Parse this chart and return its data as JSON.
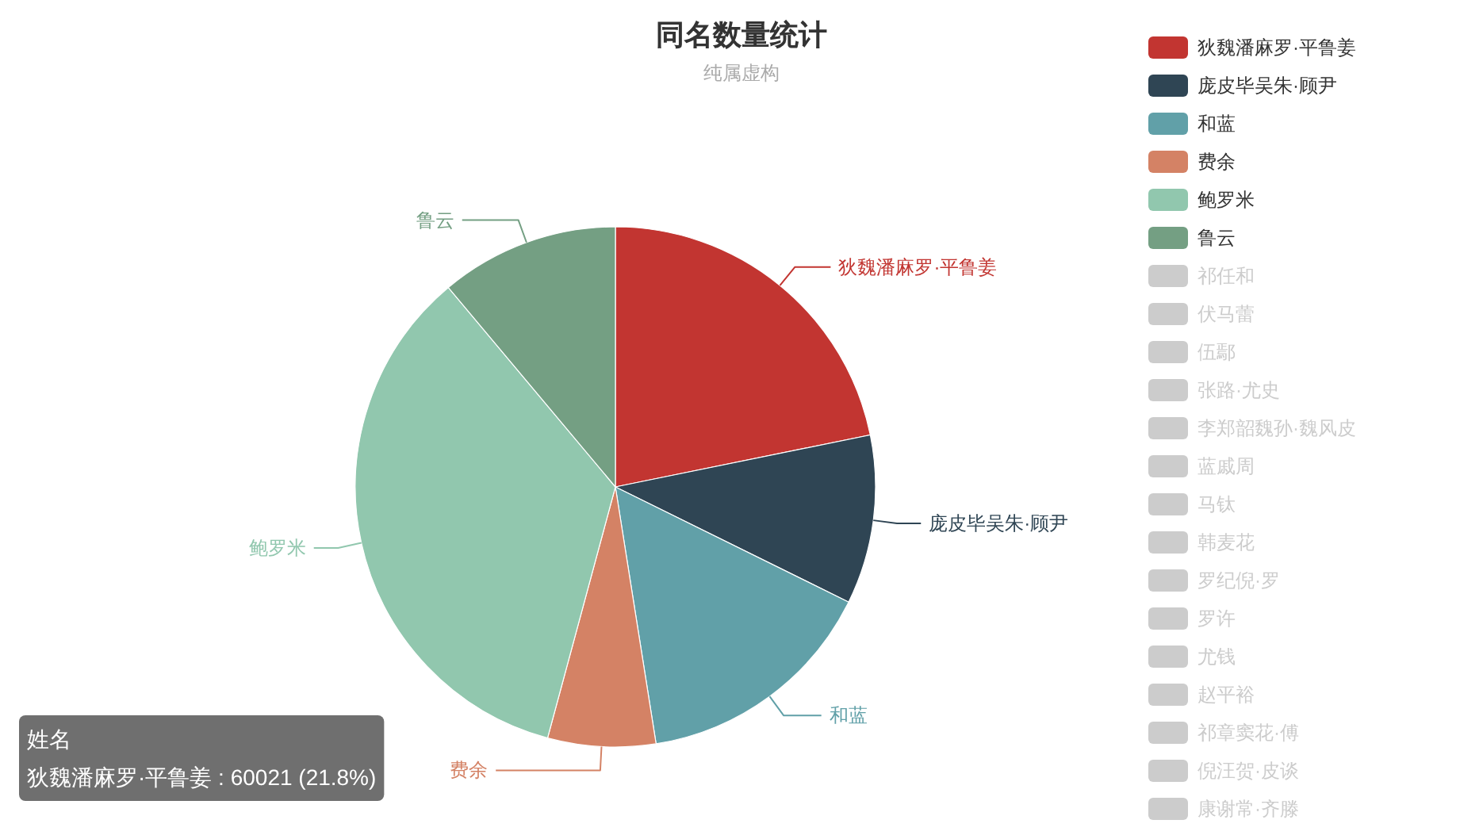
{
  "chart_data": {
    "type": "pie",
    "title": "同名数量统计",
    "subtitle": "纯属虚构",
    "categories": [
      "狄魏潘麻罗·平鲁姜",
      "庞皮毕吴朱·顾尹",
      "和蓝",
      "费余",
      "鲍罗米",
      "鲁云",
      "祁任和",
      "伏马蕾",
      "伍鄢",
      "张路·尤史",
      "李郑韶魏孙·魏风皮",
      "蓝戚周",
      "马钛",
      "韩麦花",
      "罗纪倪·罗",
      "罗许",
      "尤钱",
      "赵平裕",
      "祁章窦花·傅",
      "倪汪贺·皮谈",
      "康谢常·齐滕"
    ],
    "values": [
      21.8,
      10.5,
      15.2,
      6.7,
      34.7,
      11.1,
      null,
      null,
      null,
      null,
      null,
      null,
      null,
      null,
      null,
      null,
      null,
      null,
      null,
      null,
      null
    ],
    "colors": [
      "#c23531",
      "#2f4554",
      "#61a0a8",
      "#d48265",
      "#91c7ae",
      "#749f83",
      "#cccccc",
      "#cccccc",
      "#cccccc",
      "#cccccc",
      "#cccccc",
      "#cccccc",
      "#cccccc",
      "#cccccc",
      "#cccccc",
      "#cccccc",
      "#cccccc",
      "#cccccc",
      "#cccccc",
      "#cccccc",
      "#cccccc"
    ],
    "legend": "right",
    "annotations": [
      "姓名",
      "狄魏潘麻罗·平鲁姜 : 60021 (21.8%)"
    ]
  }
}
